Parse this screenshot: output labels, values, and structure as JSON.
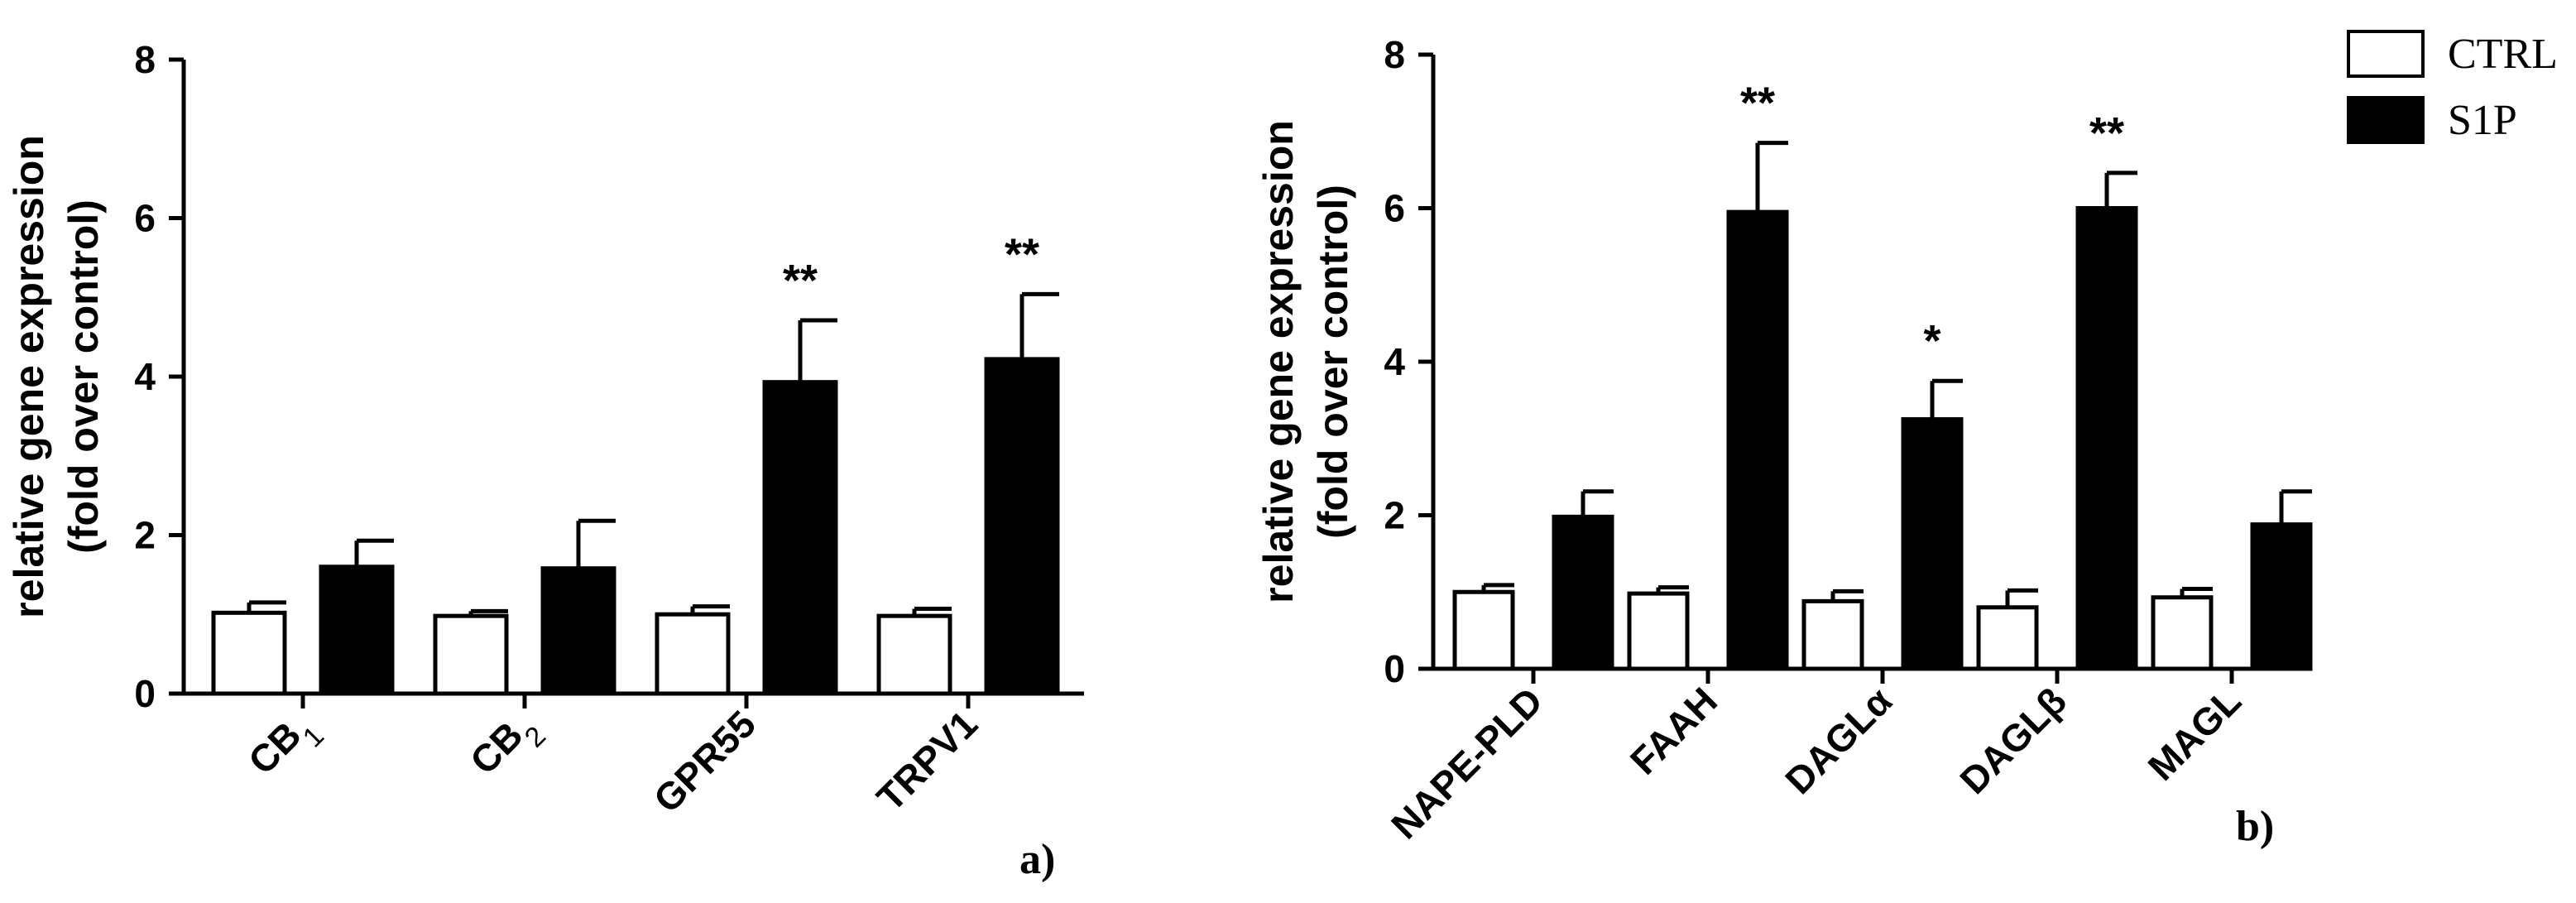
{
  "legend": {
    "items": [
      {
        "label": "CTRL",
        "color": "#ffffff"
      },
      {
        "label": "S1P",
        "color": "#000000"
      }
    ]
  },
  "chart_data": [
    {
      "type": "bar",
      "panel_label": "a)",
      "ylabel_lines": [
        "relative gene expression",
        "(fold over control)"
      ],
      "ylim": [
        0,
        8
      ],
      "yticks": [
        "0",
        "2",
        "4",
        "6",
        "8"
      ],
      "categories": [
        {
          "base": "CB",
          "sub": "1"
        },
        {
          "base": "CB",
          "sub": "2"
        },
        {
          "base": "GPR55",
          "sub": ""
        },
        {
          "base": "TRPV1",
          "sub": ""
        }
      ],
      "series": [
        {
          "name": "CTRL",
          "color": "#ffffff",
          "values": [
            1.02,
            0.98,
            1.0,
            0.98
          ],
          "errors": [
            0.13,
            0.06,
            0.1,
            0.09
          ]
        },
        {
          "name": "S1P",
          "color": "#000000",
          "values": [
            1.6,
            1.58,
            3.93,
            4.22
          ],
          "errors": [
            0.33,
            0.6,
            0.78,
            0.82
          ]
        }
      ],
      "significance": [
        {
          "series": "S1P",
          "index": 2,
          "text": "**"
        },
        {
          "series": "S1P",
          "index": 3,
          "text": "**"
        }
      ]
    },
    {
      "type": "bar",
      "panel_label": "b)",
      "ylabel_lines": [
        "relative gene expression",
        "(fold over control)"
      ],
      "ylim": [
        0,
        8
      ],
      "yticks": [
        "0",
        "2",
        "4",
        "6",
        "8"
      ],
      "categories": [
        {
          "base": "NAPE-PLD",
          "sub": ""
        },
        {
          "base": "FAAH",
          "sub": ""
        },
        {
          "base": "DAGLα",
          "sub": ""
        },
        {
          "base": "DAGLβ",
          "sub": ""
        },
        {
          "base": "MAGL",
          "sub": ""
        }
      ],
      "series": [
        {
          "name": "CTRL",
          "color": "#ffffff",
          "values": [
            1.0,
            0.98,
            0.88,
            0.8,
            0.93
          ],
          "errors": [
            0.09,
            0.08,
            0.13,
            0.22,
            0.11
          ]
        },
        {
          "name": "S1P",
          "color": "#000000",
          "values": [
            1.98,
            5.95,
            3.25,
            6.0,
            1.88
          ],
          "errors": [
            0.33,
            0.9,
            0.5,
            0.46,
            0.43
          ]
        }
      ],
      "significance": [
        {
          "series": "S1P",
          "index": 1,
          "text": "**"
        },
        {
          "series": "S1P",
          "index": 2,
          "text": "*"
        },
        {
          "series": "S1P",
          "index": 3,
          "text": "**"
        }
      ]
    }
  ]
}
